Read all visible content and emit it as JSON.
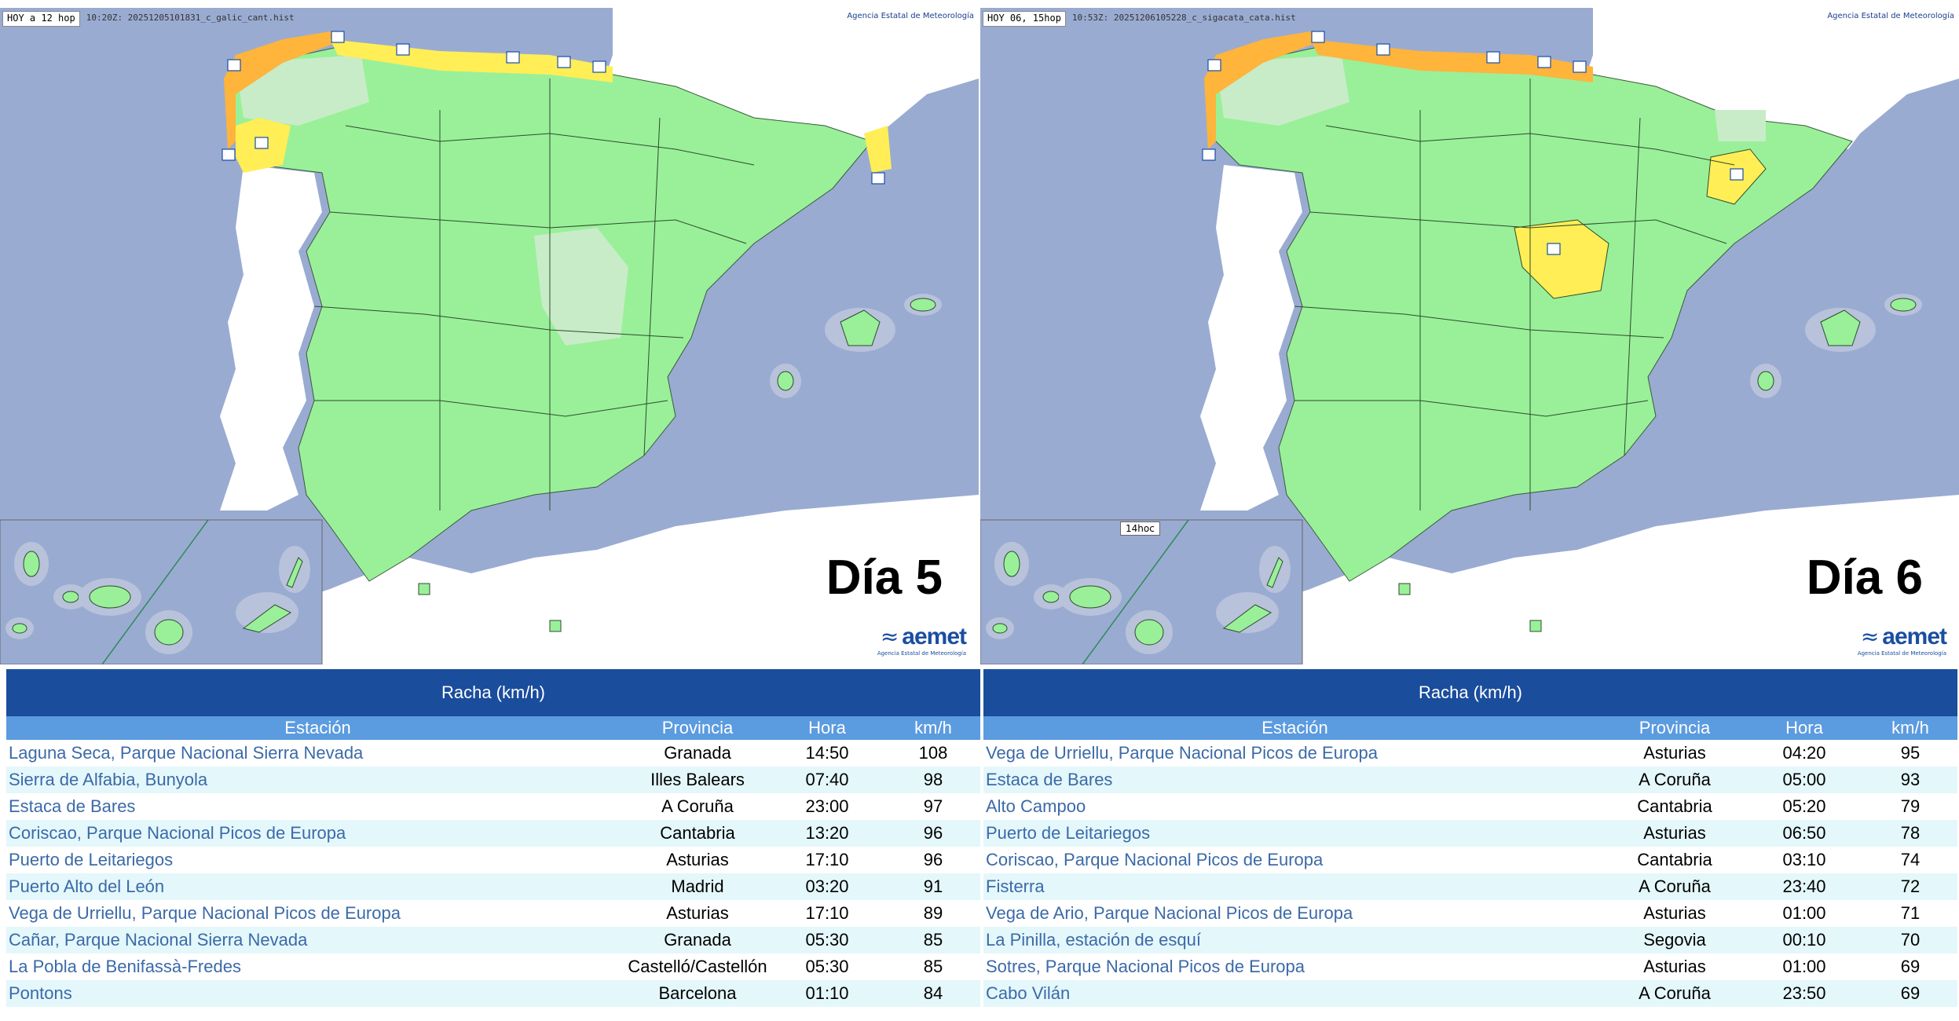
{
  "colors": {
    "sea": "#9aabd2",
    "land_green": "#99f099",
    "land_green_light": "#c8ecc8",
    "warning_yellow": "#ffee55",
    "warning_orange": "#ffb43c",
    "table_title": "#1a4d9c",
    "table_header": "#5b9be0",
    "row_alt": "#e4f7fb",
    "station_link": "#3b6aa8"
  },
  "left": {
    "map": {
      "tag": "HOY a 12 hop",
      "meta": "10:20Z: 20251205101831_c_galic_cant.hist",
      "agency_top": "Agencia Estatal de Meteorología",
      "day": "Día 5",
      "brand": "aemet",
      "brand_sub": "Agencia Estatal de Meteorología"
    },
    "table": {
      "title": "Racha (km/h)",
      "headers": {
        "station": "Estación",
        "province": "Provincia",
        "hour": "Hora",
        "kmh": "km/h"
      },
      "rows": [
        {
          "station": "Laguna Seca, Parque Nacional Sierra Nevada",
          "province": "Granada",
          "hour": "14:50",
          "kmh": "108"
        },
        {
          "station": "Sierra de Alfabia, Bunyola",
          "province": "Illes Balears",
          "hour": "07:40",
          "kmh": "98"
        },
        {
          "station": "Estaca de Bares",
          "province": "A Coruña",
          "hour": "23:00",
          "kmh": "97"
        },
        {
          "station": "Coriscao, Parque Nacional Picos de Europa",
          "province": "Cantabria",
          "hour": "13:20",
          "kmh": "96"
        },
        {
          "station": "Puerto de Leitariegos",
          "province": "Asturias",
          "hour": "17:10",
          "kmh": "96"
        },
        {
          "station": "Puerto Alto del León",
          "province": "Madrid",
          "hour": "03:20",
          "kmh": "91"
        },
        {
          "station": "Vega de Urriellu, Parque Nacional Picos de Europa",
          "province": "Asturias",
          "hour": "17:10",
          "kmh": "89"
        },
        {
          "station": "Cañar, Parque Nacional Sierra Nevada",
          "province": "Granada",
          "hour": "05:30",
          "kmh": "85"
        },
        {
          "station": "La Pobla de Benifassà-Fredes",
          "province": "Castelló/Castellón",
          "hour": "05:30",
          "kmh": "85"
        },
        {
          "station": "Pontons",
          "province": "Barcelona",
          "hour": "01:10",
          "kmh": "84"
        }
      ]
    }
  },
  "right": {
    "map": {
      "tag": "HOY 06, 15hop",
      "meta": "10:53Z: 20251206105228_c_sigacata_cata.hist",
      "agency_top": "Agencia Estatal de Meteorología",
      "inset_label": "14hoc",
      "day": "Día 6",
      "brand": "aemet",
      "brand_sub": "Agencia Estatal de Meteorología"
    },
    "table": {
      "title": "Racha (km/h)",
      "headers": {
        "station": "Estación",
        "province": "Provincia",
        "hour": "Hora",
        "kmh": "km/h"
      },
      "rows": [
        {
          "station": "Vega de Urriellu, Parque Nacional Picos de Europa",
          "province": "Asturias",
          "hour": "04:20",
          "kmh": "95"
        },
        {
          "station": "Estaca de Bares",
          "province": "A Coruña",
          "hour": "05:00",
          "kmh": "93"
        },
        {
          "station": "Alto Campoo",
          "province": "Cantabria",
          "hour": "05:20",
          "kmh": "79"
        },
        {
          "station": "Puerto de Leitariegos",
          "province": "Asturias",
          "hour": "06:50",
          "kmh": "78"
        },
        {
          "station": "Coriscao, Parque Nacional Picos de Europa",
          "province": "Cantabria",
          "hour": "03:10",
          "kmh": "74"
        },
        {
          "station": "Fisterra",
          "province": "A Coruña",
          "hour": "23:40",
          "kmh": "72"
        },
        {
          "station": "Vega de Ario, Parque Nacional Picos de Europa",
          "province": "Asturias",
          "hour": "01:00",
          "kmh": "71"
        },
        {
          "station": "La Pinilla, estación de esquí",
          "province": "Segovia",
          "hour": "00:10",
          "kmh": "70"
        },
        {
          "station": "Sotres, Parque Nacional Picos de Europa",
          "province": "Asturias",
          "hour": "01:00",
          "kmh": "69"
        },
        {
          "station": "Cabo Vilán",
          "province": "A Coruña",
          "hour": "23:50",
          "kmh": "69"
        }
      ]
    }
  }
}
